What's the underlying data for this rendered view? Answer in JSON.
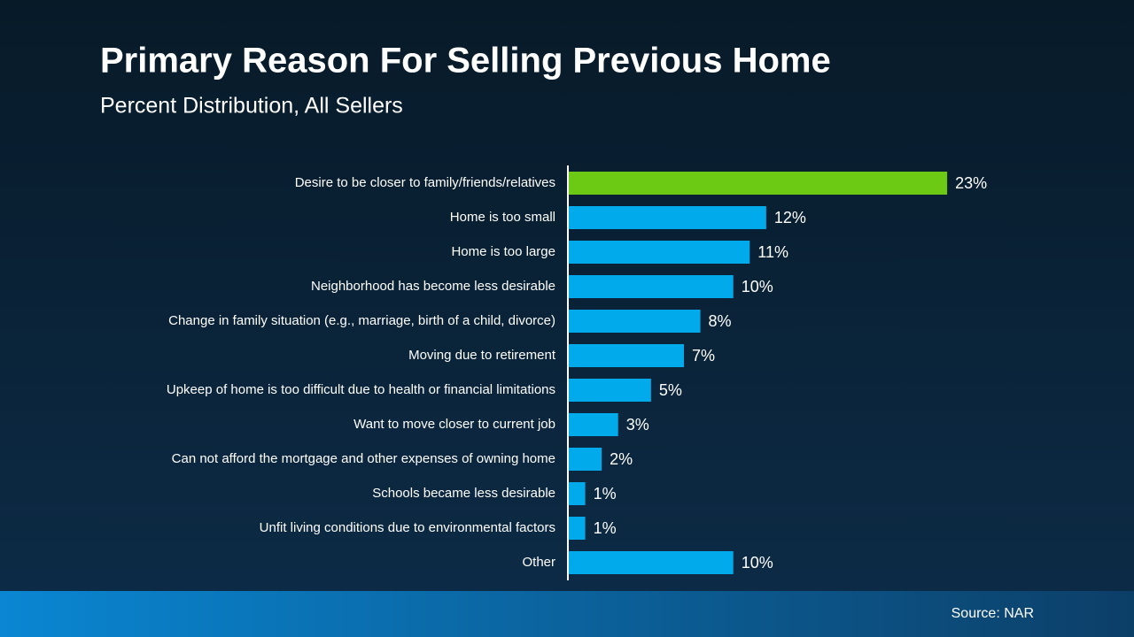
{
  "chart_data": {
    "type": "bar",
    "orientation": "horizontal",
    "title": "Primary Reason For Selling Previous Home",
    "subtitle": "Percent Distribution, All Sellers",
    "categories": [
      "Desire to be closer to family/friends/relatives",
      "Home is too small",
      "Home is too large",
      "Neighborhood has become less desirable",
      "Change in family situation (e.g., marriage, birth of a child, divorce)",
      "Moving due to retirement",
      "Upkeep of home is too difficult due to health or financial limitations",
      "Want to move closer to current job",
      "Can not afford the mortgage and other expenses of owning home",
      "Schools became less desirable",
      "Unfit living conditions due to environmental factors",
      "Other"
    ],
    "values": [
      23,
      12,
      11,
      10,
      8,
      7,
      5,
      3,
      2,
      1,
      1,
      10
    ],
    "value_labels": [
      "23%",
      "12%",
      "11%",
      "10%",
      "8%",
      "7%",
      "5%",
      "3%",
      "2%",
      "1%",
      "1%",
      "10%"
    ],
    "colors": [
      "#6cc914",
      "#00aaeb",
      "#00aaeb",
      "#00aaeb",
      "#00aaeb",
      "#00aaeb",
      "#00aaeb",
      "#00aaeb",
      "#00aaeb",
      "#00aaeb",
      "#00aaeb",
      "#00aaeb"
    ],
    "source": "Source: NAR"
  }
}
